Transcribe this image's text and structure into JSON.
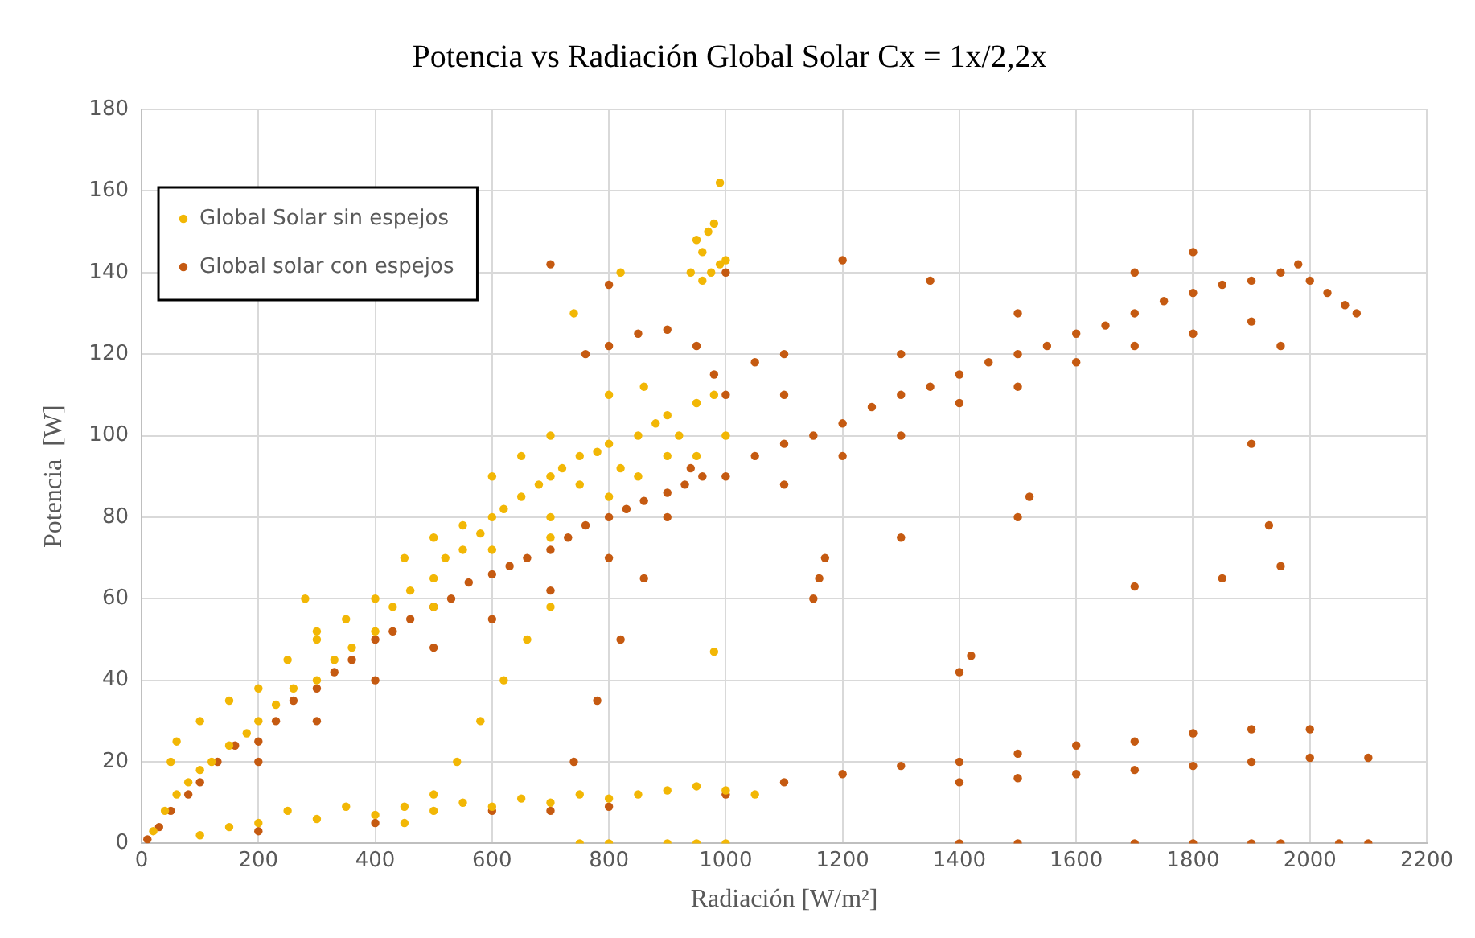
{
  "chart_data": {
    "type": "scatter",
    "title": "Potencia vs Radiación Global Solar Cx = 1x/2,2x",
    "xlabel": "Radiación [W/m²]",
    "ylabel": "Potencia  [W]",
    "xlim": [
      0,
      2200
    ],
    "xticks": [
      0,
      200,
      400,
      600,
      800,
      1000,
      1200,
      1400,
      1600,
      1800,
      2000,
      2200
    ],
    "ylim": [
      0,
      180
    ],
    "yticks": [
      0,
      20,
      40,
      60,
      80,
      100,
      120,
      140,
      160,
      180
    ],
    "grid": true,
    "legend": "top left",
    "marker": "circle",
    "series": [
      {
        "name": "Global Solar sin espejos",
        "color": "#f2b705",
        "x": [
          20,
          40,
          60,
          80,
          100,
          120,
          150,
          180,
          200,
          230,
          260,
          300,
          330,
          360,
          400,
          430,
          460,
          500,
          520,
          550,
          580,
          600,
          620,
          650,
          680,
          700,
          720,
          750,
          780,
          800,
          820,
          850,
          880,
          900,
          920,
          950,
          980,
          1000,
          450,
          500,
          550,
          600,
          650,
          700,
          750,
          800,
          850,
          900,
          950,
          300,
          350,
          250,
          200,
          150,
          100,
          60,
          50,
          400,
          500,
          600,
          700,
          800,
          860,
          940,
          950,
          960,
          970,
          980,
          990,
          975,
          960,
          990,
          1000,
          100,
          200,
          300,
          400,
          500,
          600,
          700,
          800,
          850,
          900,
          950,
          1000,
          1050,
          750,
          650,
          550,
          450,
          350,
          250,
          150,
          450,
          500,
          540,
          580,
          620,
          660,
          700,
          750,
          800,
          900,
          950,
          1000,
          280,
          300,
          700,
          820,
          740,
          980
        ],
        "values": [
          3,
          8,
          12,
          15,
          18,
          20,
          24,
          27,
          30,
          34,
          38,
          40,
          45,
          48,
          52,
          58,
          62,
          65,
          70,
          72,
          76,
          80,
          82,
          85,
          88,
          90,
          92,
          95,
          96,
          98,
          92,
          100,
          103,
          105,
          100,
          108,
          110,
          100,
          70,
          75,
          78,
          72,
          95,
          80,
          88,
          85,
          90,
          95,
          95,
          52,
          55,
          45,
          38,
          35,
          30,
          25,
          20,
          60,
          58,
          90,
          100,
          110,
          112,
          140,
          148,
          145,
          150,
          152,
          162,
          140,
          138,
          142,
          143,
          2,
          5,
          6,
          7,
          8,
          9,
          10,
          11,
          12,
          13,
          14,
          13,
          12,
          12,
          11,
          10,
          9,
          9,
          8,
          4,
          5,
          12,
          20,
          30,
          40,
          50,
          58,
          0,
          0,
          0,
          0,
          0,
          60,
          50,
          75,
          140,
          130,
          47
        ]
      },
      {
        "name": "Global solar con espejos",
        "color": "#c55a11",
        "x": [
          10,
          30,
          50,
          80,
          100,
          130,
          160,
          200,
          230,
          260,
          300,
          330,
          360,
          400,
          430,
          460,
          500,
          530,
          560,
          600,
          630,
          660,
          700,
          730,
          760,
          800,
          830,
          860,
          900,
          930,
          960,
          1000,
          1050,
          1100,
          1150,
          1200,
          1250,
          1300,
          1350,
          1400,
          1450,
          1500,
          1550,
          1600,
          1650,
          1700,
          1750,
          1800,
          1850,
          1900,
          1950,
          1980,
          2000,
          2030,
          2060,
          2080,
          1100,
          1200,
          1300,
          1400,
          1500,
          1600,
          1700,
          1800,
          1900,
          1950,
          1700,
          1800,
          1500,
          1300,
          1100,
          800,
          600,
          400,
          200,
          700,
          500,
          300,
          760,
          800,
          850,
          900,
          950,
          980,
          1000,
          1050,
          1100,
          700,
          740,
          780,
          820,
          860,
          900,
          940,
          200,
          400,
          600,
          800,
          1000,
          1100,
          1200,
          1300,
          1400,
          1500,
          1600,
          1700,
          1800,
          1900,
          2000,
          1400,
          1500,
          1600,
          1700,
          1800,
          1900,
          2000,
          2100,
          1150,
          1160,
          1170,
          1400,
          1420,
          1500,
          1520,
          1700,
          1900,
          1930,
          1950,
          1850,
          1300,
          1400,
          1500,
          1700,
          1800,
          1900,
          1950,
          2050,
          2100,
          700,
          1200,
          1000,
          800,
          1350
        ],
        "values": [
          1,
          4,
          8,
          12,
          15,
          20,
          24,
          25,
          30,
          35,
          38,
          42,
          45,
          50,
          52,
          55,
          58,
          60,
          64,
          66,
          68,
          70,
          72,
          75,
          78,
          80,
          82,
          84,
          86,
          88,
          90,
          90,
          95,
          98,
          100,
          103,
          107,
          110,
          112,
          115,
          118,
          120,
          122,
          125,
          127,
          130,
          133,
          135,
          137,
          138,
          140,
          142,
          138,
          135,
          132,
          130,
          88,
          95,
          100,
          108,
          112,
          118,
          122,
          125,
          128,
          122,
          140,
          145,
          130,
          120,
          110,
          70,
          55,
          40,
          20,
          62,
          48,
          30,
          120,
          122,
          125,
          126,
          122,
          115,
          110,
          118,
          120,
          8,
          20,
          35,
          50,
          65,
          80,
          92,
          3,
          5,
          8,
          9,
          12,
          15,
          17,
          19,
          20,
          22,
          24,
          25,
          27,
          28,
          28,
          15,
          16,
          17,
          18,
          19,
          20,
          21,
          21,
          60,
          65,
          70,
          42,
          46,
          80,
          85,
          63,
          98,
          78,
          68,
          65,
          75,
          0,
          0,
          0,
          0,
          0,
          0,
          0,
          0,
          142,
          143,
          140,
          137,
          138
        ]
      }
    ]
  }
}
